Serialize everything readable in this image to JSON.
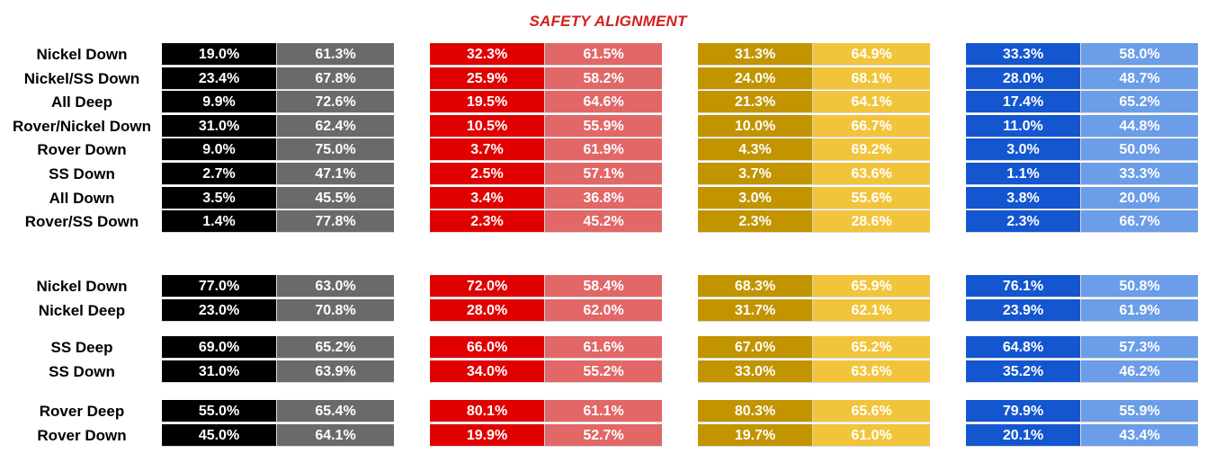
{
  "title": "SAFETY ALIGNMENT",
  "colors": {
    "black": [
      "#000000",
      "#6a6a6a"
    ],
    "red": [
      "#e00000",
      "#e26767"
    ],
    "gold": [
      "#c19400",
      "#f1c43b"
    ],
    "blue": [
      "#1356d0",
      "#6b9de8"
    ]
  },
  "blocks": [
    {
      "rows": [
        {
          "label": "Nickel Down",
          "values": [
            [
              "19.0%",
              "61.3%"
            ],
            [
              "32.3%",
              "61.5%"
            ],
            [
              "31.3%",
              "64.9%"
            ],
            [
              "33.3%",
              "58.0%"
            ]
          ]
        },
        {
          "label": "Nickel/SS Down",
          "values": [
            [
              "23.4%",
              "67.8%"
            ],
            [
              "25.9%",
              "58.2%"
            ],
            [
              "24.0%",
              "68.1%"
            ],
            [
              "28.0%",
              "48.7%"
            ]
          ]
        },
        {
          "label": "All Deep",
          "values": [
            [
              "9.9%",
              "72.6%"
            ],
            [
              "19.5%",
              "64.6%"
            ],
            [
              "21.3%",
              "64.1%"
            ],
            [
              "17.4%",
              "65.2%"
            ]
          ]
        },
        {
          "label": "Rover/Nickel Down",
          "values": [
            [
              "31.0%",
              "62.4%"
            ],
            [
              "10.5%",
              "55.9%"
            ],
            [
              "10.0%",
              "66.7%"
            ],
            [
              "11.0%",
              "44.8%"
            ]
          ]
        },
        {
          "label": "Rover Down",
          "values": [
            [
              "9.0%",
              "75.0%"
            ],
            [
              "3.7%",
              "61.9%"
            ],
            [
              "4.3%",
              "69.2%"
            ],
            [
              "3.0%",
              "50.0%"
            ]
          ]
        },
        {
          "label": "SS Down",
          "values": [
            [
              "2.7%",
              "47.1%"
            ],
            [
              "2.5%",
              "57.1%"
            ],
            [
              "3.7%",
              "63.6%"
            ],
            [
              "1.1%",
              "33.3%"
            ]
          ]
        },
        {
          "label": "All Down",
          "values": [
            [
              "3.5%",
              "45.5%"
            ],
            [
              "3.4%",
              "36.8%"
            ],
            [
              "3.0%",
              "55.6%"
            ],
            [
              "3.8%",
              "20.0%"
            ]
          ]
        },
        {
          "label": "Rover/SS Down",
          "values": [
            [
              "1.4%",
              "77.8%"
            ],
            [
              "2.3%",
              "45.2%"
            ],
            [
              "2.3%",
              "28.6%"
            ],
            [
              "2.3%",
              "66.7%"
            ]
          ]
        }
      ]
    },
    {
      "rows": [
        {
          "label": "Nickel Down",
          "values": [
            [
              "77.0%",
              "63.0%"
            ],
            [
              "72.0%",
              "58.4%"
            ],
            [
              "68.3%",
              "65.9%"
            ],
            [
              "76.1%",
              "50.8%"
            ]
          ]
        },
        {
          "label": "Nickel Deep",
          "values": [
            [
              "23.0%",
              "70.8%"
            ],
            [
              "28.0%",
              "62.0%"
            ],
            [
              "31.7%",
              "62.1%"
            ],
            [
              "23.9%",
              "61.9%"
            ]
          ]
        }
      ]
    },
    {
      "rows": [
        {
          "label": "SS Deep",
          "values": [
            [
              "69.0%",
              "65.2%"
            ],
            [
              "66.0%",
              "61.6%"
            ],
            [
              "67.0%",
              "65.2%"
            ],
            [
              "64.8%",
              "57.3%"
            ]
          ]
        },
        {
          "label": "SS Down",
          "values": [
            [
              "31.0%",
              "63.9%"
            ],
            [
              "34.0%",
              "55.2%"
            ],
            [
              "33.0%",
              "63.6%"
            ],
            [
              "35.2%",
              "46.2%"
            ]
          ]
        }
      ]
    },
    {
      "rows": [
        {
          "label": "Rover Deep",
          "values": [
            [
              "55.0%",
              "65.4%"
            ],
            [
              "80.1%",
              "61.1%"
            ],
            [
              "80.3%",
              "65.6%"
            ],
            [
              "79.9%",
              "55.9%"
            ]
          ]
        },
        {
          "label": "Rover Down",
          "values": [
            [
              "45.0%",
              "64.1%"
            ],
            [
              "19.9%",
              "52.7%"
            ],
            [
              "19.7%",
              "61.0%"
            ],
            [
              "20.1%",
              "43.4%"
            ]
          ]
        }
      ]
    }
  ]
}
